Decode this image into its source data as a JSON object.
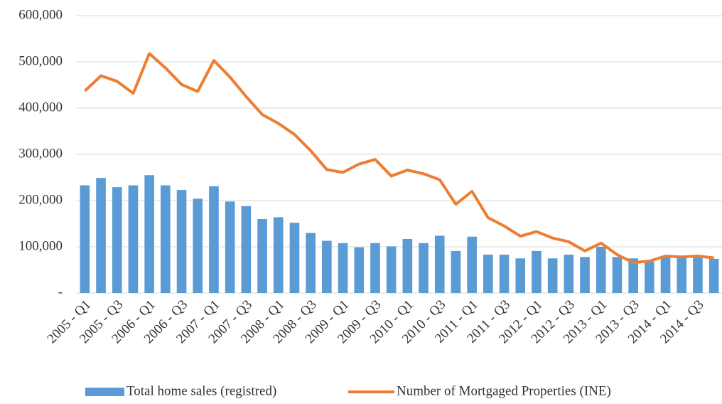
{
  "chart_data": {
    "type": "bar_line",
    "categories": [
      "2005 - Q1",
      null,
      "2005 - Q3",
      null,
      "2006 - Q1",
      null,
      "2006 - Q3",
      null,
      "2007 - Q1",
      null,
      "2007 - Q3",
      null,
      "2008 - Q1",
      null,
      "2008 - Q3",
      null,
      "2009 - Q1",
      null,
      "2009 - Q3",
      null,
      "2010 - Q1",
      null,
      "2010 - Q3",
      null,
      "2011 - Q1",
      null,
      "2011 - Q3",
      null,
      "2012 - Q1",
      null,
      "2012 - Q3",
      null,
      "2013 - Q1",
      null,
      "2013 - Q3",
      null,
      "2014 - Q1",
      null,
      "2014 - Q3",
      null
    ],
    "series": [
      {
        "name": "Total home sales (registred)",
        "type": "bar",
        "color": "#5b9bd5",
        "values": [
          233000,
          249000,
          229000,
          233000,
          255000,
          233000,
          223000,
          204000,
          231000,
          198000,
          188000,
          160000,
          164000,
          152000,
          130000,
          113000,
          108000,
          99000,
          108000,
          101000,
          117000,
          108000,
          124000,
          91000,
          122000,
          83000,
          83000,
          75000,
          91000,
          75000,
          83000,
          78000,
          100000,
          78000,
          75000,
          68000,
          80000,
          76000,
          77000,
          74000
        ]
      },
      {
        "name": "Number of Mortgaged Properties (INE)",
        "type": "line",
        "color": "#ed7d31",
        "values": [
          437000,
          470000,
          458000,
          432000,
          518000,
          487000,
          451000,
          436000,
          503000,
          467000,
          425000,
          386000,
          367000,
          343000,
          308000,
          267000,
          261000,
          279000,
          289000,
          253000,
          266000,
          258000,
          245000,
          192000,
          220000,
          163000,
          145000,
          123000,
          133000,
          119000,
          111000,
          91000,
          108000,
          83000,
          66000,
          69000,
          80000,
          78000,
          80000,
          76000
        ]
      }
    ],
    "ylim": [
      0,
      600000
    ],
    "yticks": [
      {
        "value": 0,
        "label": "-"
      },
      {
        "value": 100000,
        "label": "100,000"
      },
      {
        "value": 200000,
        "label": "200,000"
      },
      {
        "value": 300000,
        "label": "300,000"
      },
      {
        "value": 400000,
        "label": "400,000"
      },
      {
        "value": 500000,
        "label": "500,000"
      },
      {
        "value": 600000,
        "label": "600,000"
      }
    ],
    "grid": true,
    "legend": "bottom"
  }
}
